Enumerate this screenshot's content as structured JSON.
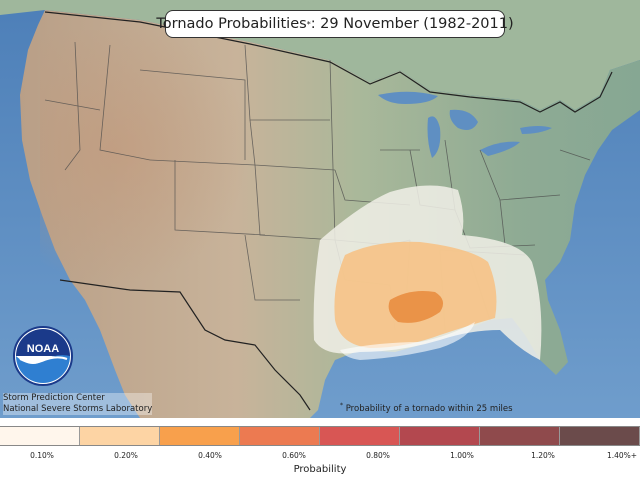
{
  "title": {
    "text": "Tornado Probabilities",
    "marker": "*",
    "rest": ": 29 November (1982-2011)"
  },
  "logo": {
    "text": "NOAA"
  },
  "credits": {
    "line1": "Storm Prediction Center",
    "line2": "National Severe Storms Laboratory"
  },
  "footnote": {
    "marker": "*",
    "text": "Probability of a tornado within 25 miles"
  },
  "legend": {
    "title": "Probability",
    "ticks": [
      "0.10%",
      "0.20%",
      "0.40%",
      "0.60%",
      "0.80%",
      "1.00%",
      "1.20%",
      "1.40%+"
    ],
    "colors": [
      "#fff6ec",
      "#fdd4a4",
      "#f8a04c",
      "#ec7a51",
      "#d85654",
      "#b3484f",
      "#8f4a4c",
      "#6b4b4b"
    ]
  },
  "colors": {
    "ocean": "#5f8fc2",
    "land_low": "#a8b99a",
    "land_high": "#c9a98c",
    "contour_010": "#f3f2ec",
    "contour_020": "#f6be82",
    "contour_040": "#ec9a52"
  }
}
